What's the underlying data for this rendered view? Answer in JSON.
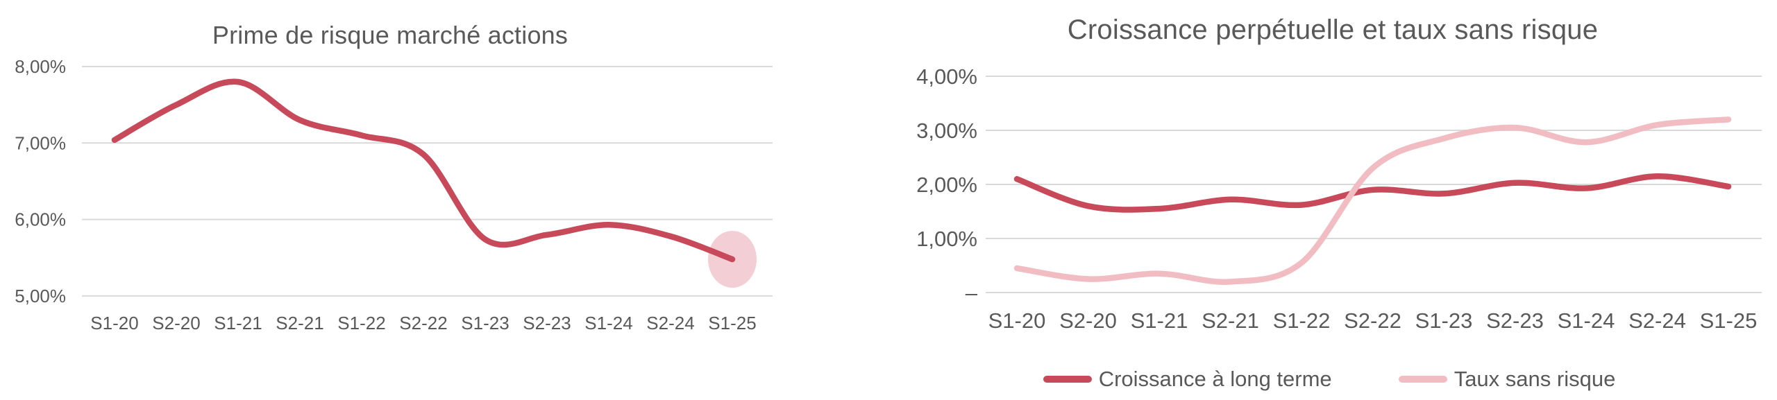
{
  "page": {
    "background": "#ffffff"
  },
  "colors": {
    "text": "#595959",
    "gridline": "#d9d9d9",
    "accent_dark": "#c8495a",
    "accent_light": "#f2bcc3",
    "highlight": "#f4ced5"
  },
  "chart_data": [
    {
      "type": "line",
      "title": "Prime de risque marché actions",
      "categories": [
        "S1-20",
        "S2-20",
        "S1-21",
        "S2-21",
        "S1-22",
        "S2-22",
        "S1-23",
        "S2-23",
        "S1-24",
        "S2-24",
        "S1-25"
      ],
      "series": [
        {
          "name": "Prime de risque marché actions",
          "color": "#c8495a",
          "values": [
            7.04,
            7.5,
            7.8,
            7.3,
            7.1,
            6.85,
            5.74,
            5.8,
            5.93,
            5.78,
            5.48
          ]
        }
      ],
      "y_axis": {
        "tick_labels": [
          "8,00%",
          "7,00%",
          "6,00%",
          "5,00%"
        ],
        "tick_values": [
          8,
          7,
          6,
          5
        ],
        "ylim": [
          5,
          8
        ],
        "unit": "%"
      },
      "xlabel": "",
      "ylabel": "",
      "grid": true,
      "smooth": true,
      "legend": false,
      "highlight": {
        "category": "S1-25",
        "value": 5.48,
        "color": "#f4ced5",
        "shape": "ellipse"
      }
    },
    {
      "type": "line",
      "title": "Croissance perpétuelle et taux sans risque",
      "categories": [
        "S1-20",
        "S2-20",
        "S1-21",
        "S2-21",
        "S1-22",
        "S2-22",
        "S1-23",
        "S2-23",
        "S1-24",
        "S2-24",
        "S1-25"
      ],
      "series": [
        {
          "name": "Croissance à long terme",
          "color": "#c8495a",
          "values": [
            2.1,
            1.6,
            1.55,
            1.72,
            1.62,
            1.9,
            1.83,
            2.03,
            1.93,
            2.15,
            1.96
          ]
        },
        {
          "name": "Taux sans risque",
          "color": "#f2bcc3",
          "values": [
            0.45,
            0.25,
            0.35,
            0.2,
            0.55,
            2.3,
            2.85,
            3.05,
            2.78,
            3.1,
            3.2
          ]
        }
      ],
      "y_axis": {
        "tick_labels": [
          "4,00%",
          "3,00%",
          "2,00%",
          "1,00%",
          "–"
        ],
        "tick_values": [
          4,
          3,
          2,
          1,
          0
        ],
        "ylim": [
          0,
          4
        ],
        "unit": "%"
      },
      "xlabel": "",
      "ylabel": "",
      "grid": true,
      "smooth": true,
      "legend": true,
      "legend_position": "bottom"
    }
  ]
}
